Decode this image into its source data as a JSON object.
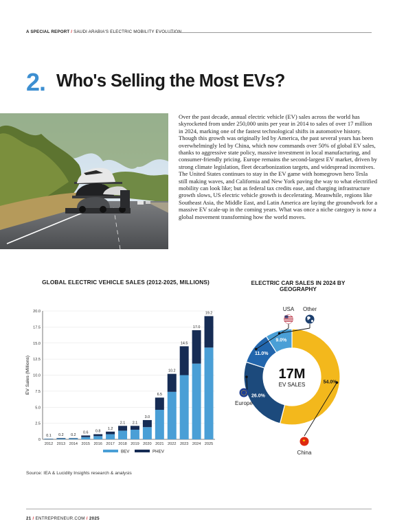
{
  "header": {
    "section_label": "A SPECIAL REPORT",
    "separator": "/",
    "series_title": "SAUDI ARABIA'S ELECTRIC MOBILITY EVOLUTION"
  },
  "article": {
    "number": "2.",
    "title": "Who's Selling the Most EVs?",
    "body": "Over the past decade, annual electric vehicle (EV) sales across the world has skyrocketed from under 250,000 units per year in 2014 to sales of over 17 million in 2024, marking one of the fastest technological shifts in automotive history. Though this growth was originally led by America, the past several years has been overwhelmingly led by China, which now commands over 50% of global EV sales, thanks to aggressive state policy, massive investment in local manufacturing, and consumer-friendly pricing. Europe remains the second-largest EV market, driven by strong climate legislation, fleet decarbonization targets, and widespread incentives. The United States continues to stay in the EV game with homegrown hero Tesla still making waves, and California and New York paving the way to what electrified mobility can look like; but as federal tax credits ease, and charging infrastructure growth slows, US electric vehicle growth is decelerating. Meanwhile, regions like Southeast Asia, the Middle East, and Latin America are laying the groundwork for a massive EV scale-up in the coming years. What was once a niche category is now a global movement transforming how the world moves."
  },
  "colors": {
    "accent_blue": "#3d8fd1",
    "bev": "#4a9fd6",
    "phev": "#162c54",
    "china": "#f3b81c",
    "europe": "#1c4a7c",
    "usa": "#2266ad",
    "other": "#4a9fd6",
    "header_red": "#d9282f"
  },
  "chart_data": [
    {
      "type": "bar",
      "stacked": true,
      "title": "GLOBAL ELECTRIC VEHICLE SALES (2012-2025, MILLIONS)",
      "xlabel": "",
      "ylabel": "EV Sales (Millions)",
      "ylim": [
        0,
        20
      ],
      "yticks": [
        "0",
        "2.5",
        "5.0",
        "7.5",
        "10.0",
        "12.5",
        "15.0",
        "17.5",
        "20.0"
      ],
      "categories": [
        "2012",
        "2013",
        "2014",
        "2015",
        "2016",
        "2017",
        "2018",
        "2019",
        "2020",
        "2021",
        "2022",
        "2023",
        "2024",
        "2025"
      ],
      "series": [
        {
          "name": "BEV",
          "values": [
            0.06,
            0.12,
            0.14,
            0.35,
            0.5,
            0.8,
            1.35,
            1.5,
            1.9,
            4.6,
            7.4,
            10.0,
            11.8,
            14.3
          ]
        },
        {
          "name": "PHEV",
          "values": [
            0.04,
            0.08,
            0.06,
            0.25,
            0.3,
            0.4,
            0.75,
            0.6,
            1.1,
            1.9,
            2.8,
            4.5,
            5.2,
            4.9
          ]
        }
      ],
      "totals": [
        "0.1",
        "0.2",
        "0.2",
        "0.6",
        "0.8",
        "1.2",
        "2.1",
        "2.1",
        "3.0",
        "6.5",
        "10.2",
        "14.5",
        "17.0",
        "19.2"
      ],
      "grid": true,
      "legend": "bottom"
    },
    {
      "type": "pie",
      "donut": true,
      "title": "ELECTRIC CAR SALES IN 2024 BY GEOGRAPHY",
      "center_value": "17M",
      "center_label": "EV SALES",
      "slices": [
        {
          "name": "China",
          "value": 54.0,
          "label": "54.0%",
          "flag_icon": "china-flag-icon"
        },
        {
          "name": "Europe",
          "value": 26.0,
          "label": "26.0%",
          "flag_icon": "eu-flag-icon"
        },
        {
          "name": "USA",
          "value": 11.0,
          "label": "11.0%",
          "flag_icon": "usa-flag-icon"
        },
        {
          "name": "Other",
          "value": 9.0,
          "label": "9.0%",
          "flag_icon": "globe-icon"
        }
      ]
    }
  ],
  "source": "Source: IEA & Lucidity Insights research & analysis",
  "footer": {
    "page_number": "21",
    "separator": "/",
    "publication": "ENTREPRENEUR.COM",
    "year": "2025"
  }
}
